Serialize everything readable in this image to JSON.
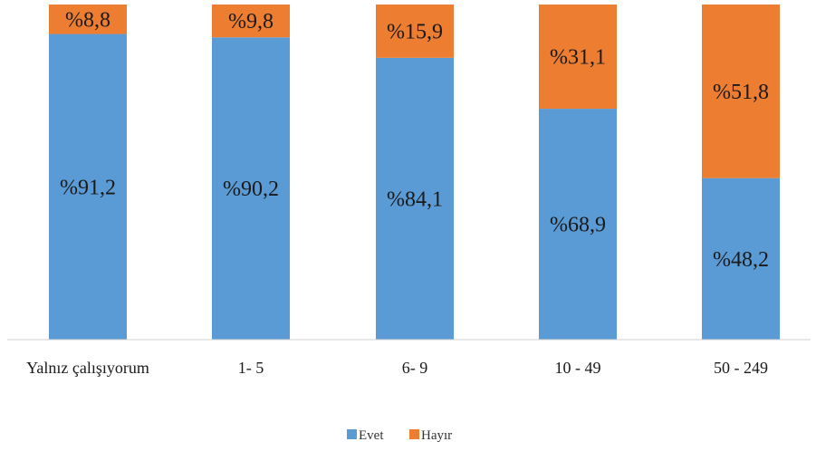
{
  "chart_data": {
    "type": "bar",
    "stacked": true,
    "categories": [
      "Yalnız çalışıyorum",
      "1- 5",
      "6- 9",
      "10 - 49",
      "50 - 249"
    ],
    "series": [
      {
        "name": "Evet",
        "color": "#5B9BD5",
        "values": [
          91.2,
          90.2,
          84.1,
          68.9,
          48.2
        ],
        "labels": [
          "%91,2",
          "%90,2",
          "%84,1",
          "%68,9",
          "%48,2"
        ]
      },
      {
        "name": "Hayır",
        "color": "#ED7D31",
        "values": [
          8.8,
          9.8,
          15.9,
          31.1,
          51.8
        ],
        "labels": [
          "%8,8",
          "%9,8",
          "%15,9",
          "%31,1",
          "%51,8"
        ]
      }
    ],
    "ylim": [
      0,
      100
    ],
    "grid": false,
    "legend_position": "bottom"
  }
}
